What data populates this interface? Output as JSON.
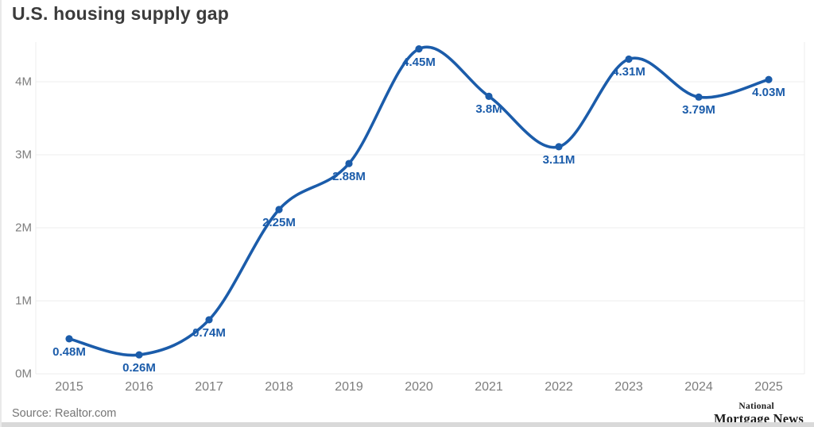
{
  "page": {
    "source": "Source: Realtor.com",
    "brand": {
      "line1": "National",
      "line2": "Mortgage News"
    }
  },
  "chart_data": {
    "type": "line",
    "title": "U.S. housing supply gap",
    "x": [
      "2015",
      "2016",
      "2017",
      "2018",
      "2019",
      "2020",
      "2021",
      "2022",
      "2023",
      "2024",
      "2025"
    ],
    "values": [
      0.48,
      0.26,
      0.74,
      2.25,
      2.88,
      4.45,
      3.8,
      3.11,
      4.31,
      3.79,
      4.03
    ],
    "point_labels": [
      "0.48M",
      "0.26M",
      "0.74M",
      "2.25M",
      "2.88M",
      "4.45M",
      "3.8M",
      "3.11M",
      "4.31M",
      "3.79M",
      "4.03M"
    ],
    "ytick_values": [
      0,
      1,
      2,
      3,
      4
    ],
    "ytick_labels": [
      "0M",
      "1M",
      "2M",
      "3M",
      "4M"
    ],
    "ylim": [
      0,
      4.55
    ],
    "grid": true,
    "legend": "none",
    "line_color": "#1b5caa",
    "grid_color": "#ececec",
    "marker": "circle"
  }
}
